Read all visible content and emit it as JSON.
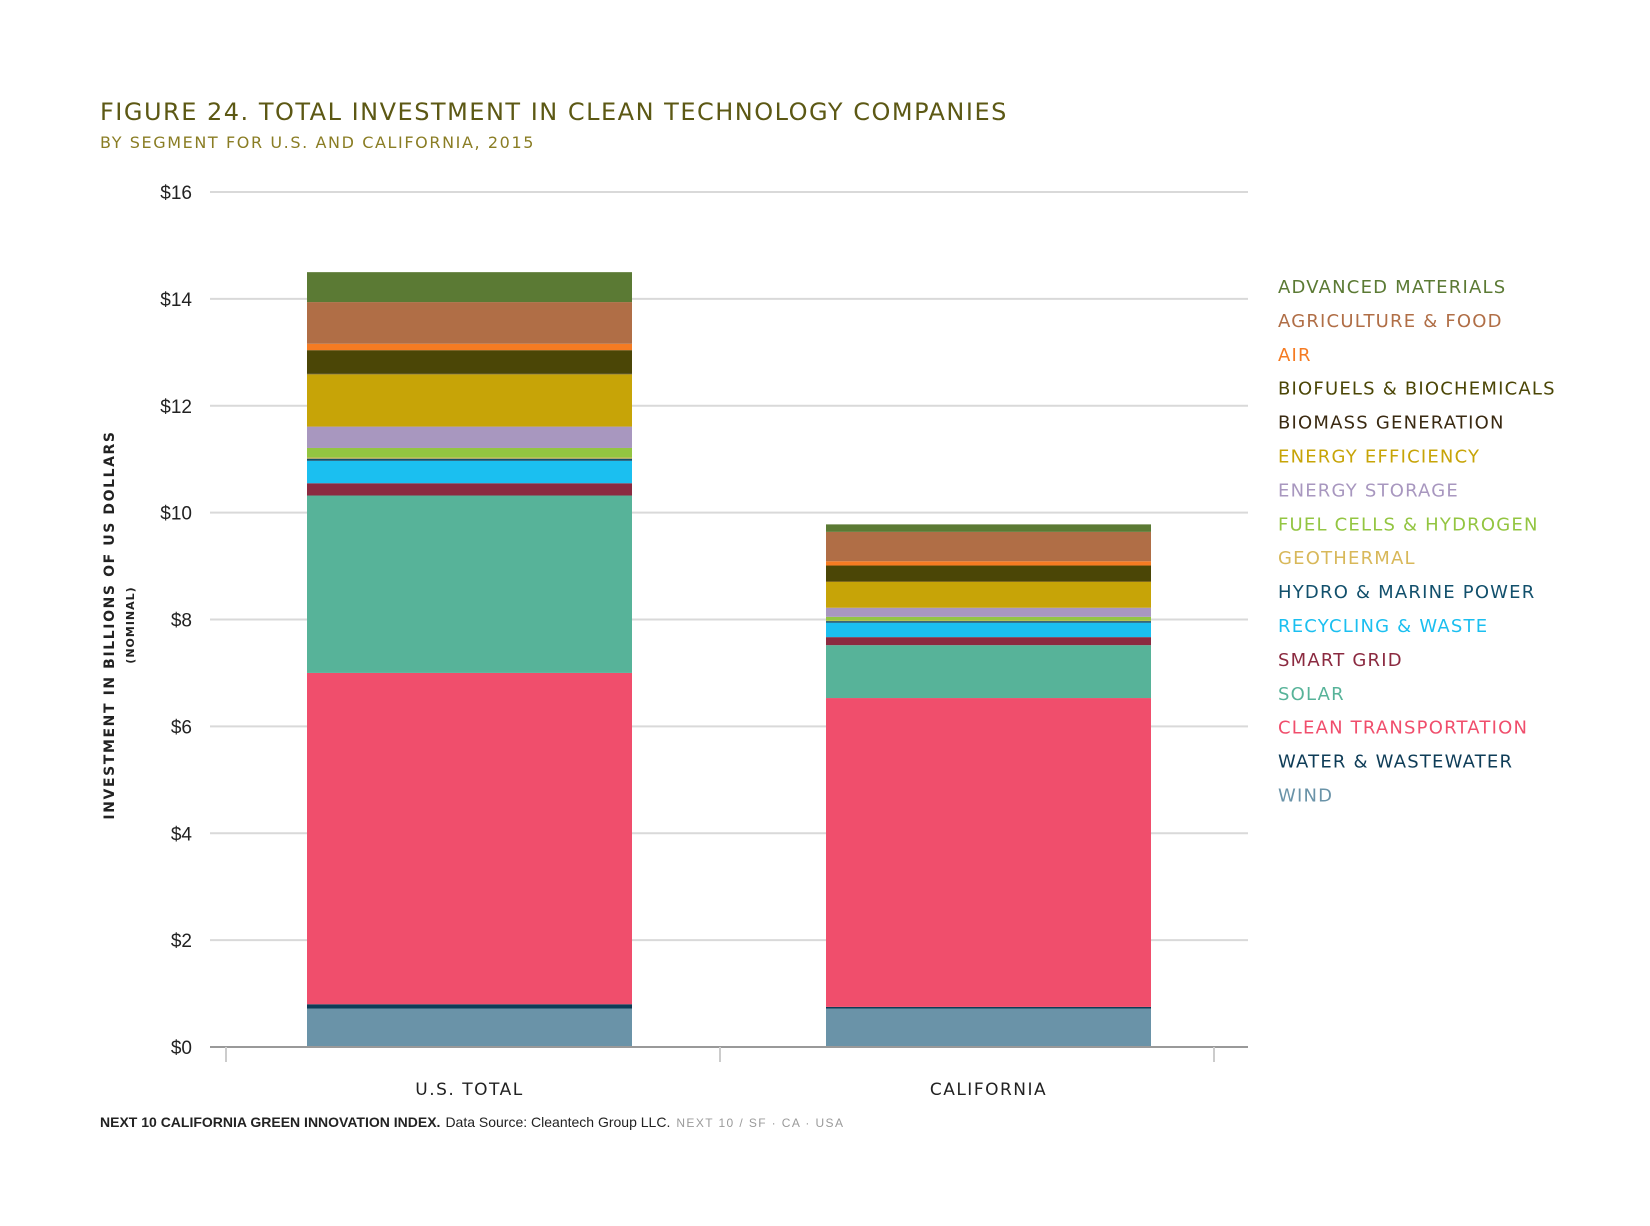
{
  "chart_data": {
    "type": "bar",
    "stacked": true,
    "title": "FIGURE 24. TOTAL INVESTMENT IN CLEAN TECHNOLOGY COMPANIES",
    "subtitle": "BY SEGMENT FOR U.S. AND CALIFORNIA, 2015",
    "ylabel": "INVESTMENT IN BILLIONS OF US DOLLARS",
    "ylabel_sub": "(NOMINAL)",
    "xlabel": "",
    "ylim": [
      0,
      16
    ],
    "yticks": [
      0,
      2,
      4,
      6,
      8,
      10,
      12,
      14,
      16
    ],
    "ytick_labels": [
      "$0",
      "$2",
      "$4",
      "$6",
      "$8",
      "$10",
      "$12",
      "$14",
      "$16"
    ],
    "grid": true,
    "legend_position": "right",
    "categories": [
      "U.S. TOTAL",
      "CALIFORNIA"
    ],
    "series": [
      {
        "name": "WIND",
        "color": "#6a93a8",
        "values": [
          0.72,
          0.72
        ]
      },
      {
        "name": "WATER & WASTEWATER",
        "color": "#0e3c57",
        "values": [
          0.08,
          0.03
        ]
      },
      {
        "name": "CLEAN TRANSPORTATION",
        "color": "#f04e6c",
        "values": [
          6.2,
          5.78
        ]
      },
      {
        "name": "SOLAR",
        "color": "#57b399",
        "values": [
          3.32,
          0.99
        ]
      },
      {
        "name": "SMART GRID",
        "color": "#8b2a40",
        "values": [
          0.23,
          0.15
        ]
      },
      {
        "name": "RECYCLING & WASTE",
        "color": "#1bbff0",
        "values": [
          0.42,
          0.27
        ]
      },
      {
        "name": "HYDRO & MARINE POWER",
        "color": "#12506c",
        "values": [
          0.04,
          0.03
        ]
      },
      {
        "name": "GEOTHERMAL",
        "color": "#d8b85a",
        "values": [
          0.02,
          0.01
        ]
      },
      {
        "name": "FUEL CELLS & HYDROGEN",
        "color": "#93c541",
        "values": [
          0.18,
          0.07
        ]
      },
      {
        "name": "ENERGY STORAGE",
        "color": "#a897bf",
        "values": [
          0.4,
          0.17
        ]
      },
      {
        "name": "ENERGY EFFICIENCY",
        "color": "#c7a407",
        "values": [
          0.98,
          0.49
        ]
      },
      {
        "name": "BIOMASS GENERATION",
        "color": "#3a2a12",
        "values": [
          0.01,
          0.01
        ]
      },
      {
        "name": "BIOFUELS & BIOCHEMICALS",
        "color": "#4b4606",
        "values": [
          0.44,
          0.29
        ]
      },
      {
        "name": "AIR",
        "color": "#f57b22",
        "values": [
          0.12,
          0.08
        ]
      },
      {
        "name": "AGRICULTURE & FOOD",
        "color": "#b06e46",
        "values": [
          0.78,
          0.55
        ]
      },
      {
        "name": "ADVANCED MATERIALS",
        "color": "#5b7a34",
        "values": [
          0.56,
          0.14
        ]
      }
    ],
    "legend_order": [
      {
        "name": "ADVANCED MATERIALS",
        "color": "#5b7a34"
      },
      {
        "name": "AGRICULTURE & FOOD",
        "color": "#b06e46"
      },
      {
        "name": "AIR",
        "color": "#f57b22"
      },
      {
        "name": "BIOFUELS & BIOCHEMICALS",
        "color": "#4b4606"
      },
      {
        "name": "BIOMASS GENERATION",
        "color": "#3a2a12"
      },
      {
        "name": "ENERGY EFFICIENCY",
        "color": "#c7a407"
      },
      {
        "name": "ENERGY STORAGE",
        "color": "#a897bf"
      },
      {
        "name": "FUEL CELLS & HYDROGEN",
        "color": "#93c541"
      },
      {
        "name": "GEOTHERMAL",
        "color": "#d8b85a"
      },
      {
        "name": "HYDRO & MARINE POWER",
        "color": "#12506c"
      },
      {
        "name": "RECYCLING & WASTE",
        "color": "#1bbff0"
      },
      {
        "name": "SMART GRID",
        "color": "#8b2a40"
      },
      {
        "name": "SOLAR",
        "color": "#57b399"
      },
      {
        "name": "CLEAN TRANSPORTATION",
        "color": "#f04e6c"
      },
      {
        "name": "WATER & WASTEWATER",
        "color": "#0e3c57"
      },
      {
        "name": "WIND",
        "color": "#6a93a8"
      }
    ]
  },
  "source": {
    "bold": "NEXT 10 CALIFORNIA GREEN INNOVATION INDEX.",
    "text": "Data Source: Cleantech Group LLC.",
    "gray": "NEXT 10  /  SF · CA · USA"
  }
}
